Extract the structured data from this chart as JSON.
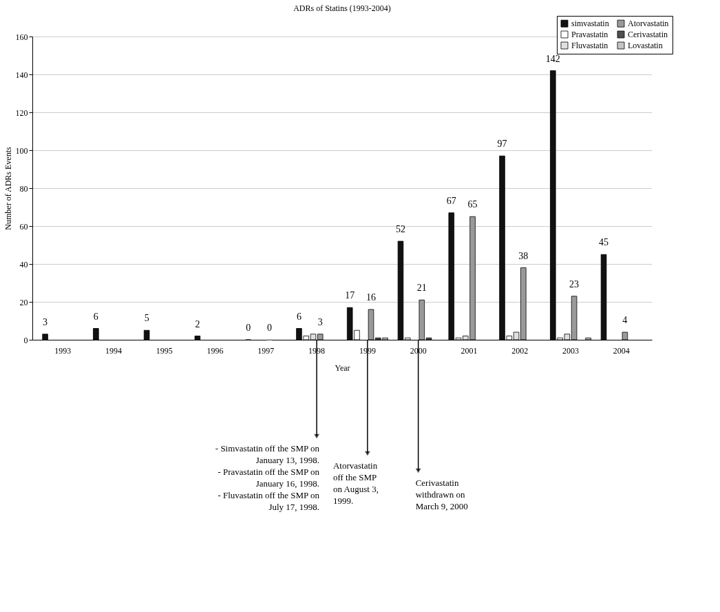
{
  "chart_data": {
    "type": "bar",
    "title": "ADRs of Statins (1993-2004)",
    "xlabel": "Year",
    "ylabel": "Number of ADRs Events",
    "categories": [
      "1993",
      "1994",
      "1995",
      "1996",
      "1997",
      "1998",
      "1999",
      "2000",
      "2001",
      "2002",
      "2003",
      "2004"
    ],
    "series": [
      {
        "name": "simvastatin",
        "color": "#111111",
        "values": [
          3,
          6,
          5,
          2,
          0,
          6,
          17,
          52,
          67,
          97,
          142,
          45
        ],
        "value_labels": [
          "3",
          "6",
          "5",
          "2",
          "0",
          "6",
          "17",
          "52",
          "67",
          "97",
          "142",
          "45"
        ]
      },
      {
        "name": "Pravastatin",
        "color": "#ffffff",
        "values": [
          null,
          null,
          null,
          null,
          null,
          2,
          5,
          1,
          1,
          2,
          1,
          null
        ]
      },
      {
        "name": "Fluvastatin",
        "color": "#e0e0e0",
        "values": [
          null,
          null,
          null,
          null,
          null,
          3,
          null,
          null,
          2,
          4,
          3,
          null
        ]
      },
      {
        "name": "Atorvastatin",
        "color": "#9a9a9a",
        "values": [
          null,
          null,
          null,
          null,
          0,
          3,
          16,
          21,
          65,
          38,
          23,
          4
        ],
        "value_labels": [
          null,
          null,
          null,
          null,
          "0",
          "3",
          "16",
          "21",
          "65",
          "38",
          "23",
          "4"
        ]
      },
      {
        "name": "Cerivastatin",
        "color": "#4e4e4e",
        "values": [
          null,
          null,
          null,
          null,
          null,
          null,
          1,
          1,
          null,
          null,
          null,
          null
        ]
      },
      {
        "name": "Lovastatin",
        "color": "#c4c4c4",
        "values": [
          null,
          null,
          null,
          null,
          null,
          null,
          1,
          null,
          null,
          null,
          1,
          null
        ]
      }
    ],
    "ylim": [
      0,
      160
    ],
    "yticks": [
      0,
      20,
      40,
      60,
      80,
      100,
      120,
      140,
      160
    ],
    "grid": "y",
    "legend": "top right",
    "annotations": [
      {
        "text": "- Simvastatin off the SMP on\nJanuary 13, 1998.\n- Pravastatin off the SMP on\nJanuary 16, 1998.\n- Fluvastatin off the SMP on\nJuly 17, 1998.",
        "x": "1998",
        "y": 0
      },
      {
        "text": "Atorvastatin\noff the SMP\non August 3,\n1999.",
        "x": "1999",
        "y": 0
      },
      {
        "text": "Cerivastatin\nwithdrawn on\nMarch 9, 2000",
        "x": "2000",
        "y": 0
      }
    ]
  }
}
